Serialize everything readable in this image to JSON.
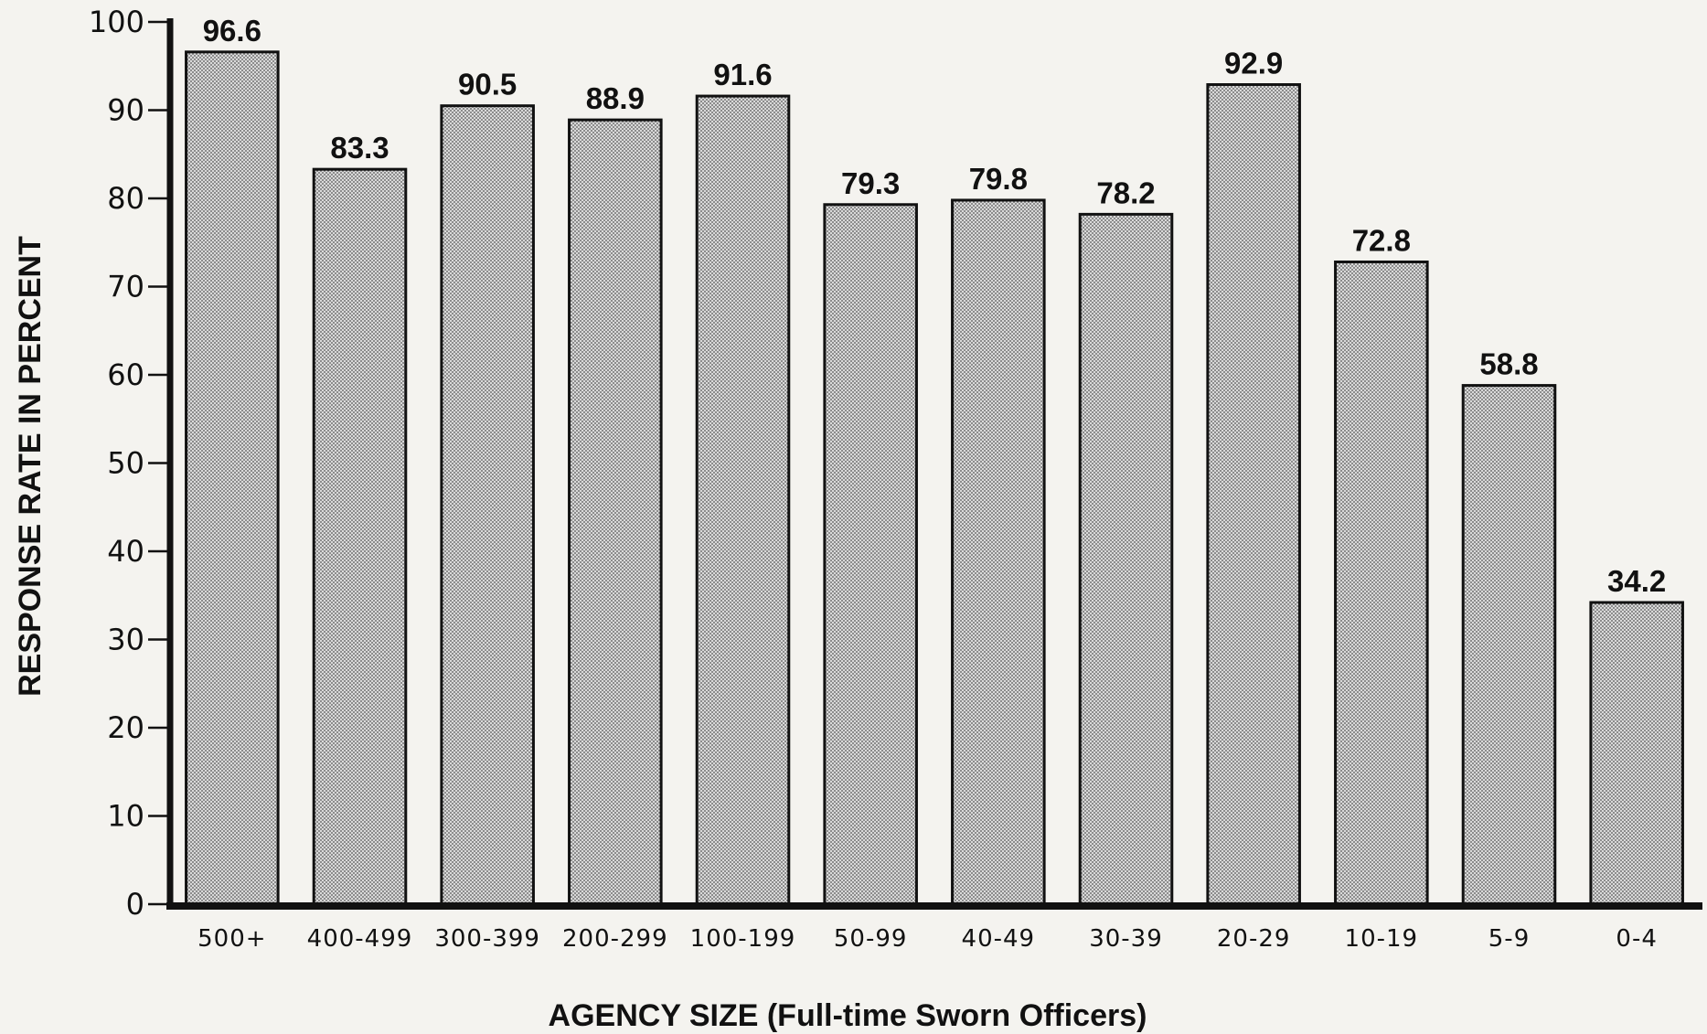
{
  "chart_data": {
    "type": "bar",
    "title": "",
    "xlabel": "AGENCY SIZE (Full-time Sworn Officers)",
    "ylabel": "RESPONSE RATE IN PERCENT",
    "categories": [
      "500+",
      "400-499",
      "300-399",
      "200-299",
      "100-199",
      "50-99",
      "40-49",
      "30-39",
      "20-29",
      "10-19",
      "5-9",
      "0-4"
    ],
    "values": [
      96.6,
      83.3,
      90.5,
      88.9,
      91.6,
      79.3,
      79.8,
      78.2,
      92.9,
      72.8,
      58.8,
      34.2
    ],
    "data_labels": [
      "96.6",
      "83.3",
      "90.5",
      "88.9",
      "91.6",
      "79.3",
      "79.8",
      "78.2",
      "92.9",
      "72.8",
      "58.8",
      "34.2"
    ],
    "ylim": [
      0,
      100
    ],
    "yticks": [
      0,
      10,
      20,
      30,
      40,
      50,
      60,
      70,
      80,
      90,
      100
    ],
    "grid": false,
    "legend": "none",
    "bar_fill": "#c9c9c9",
    "bar_stroke": "#111111",
    "axis_color": "#111111"
  }
}
